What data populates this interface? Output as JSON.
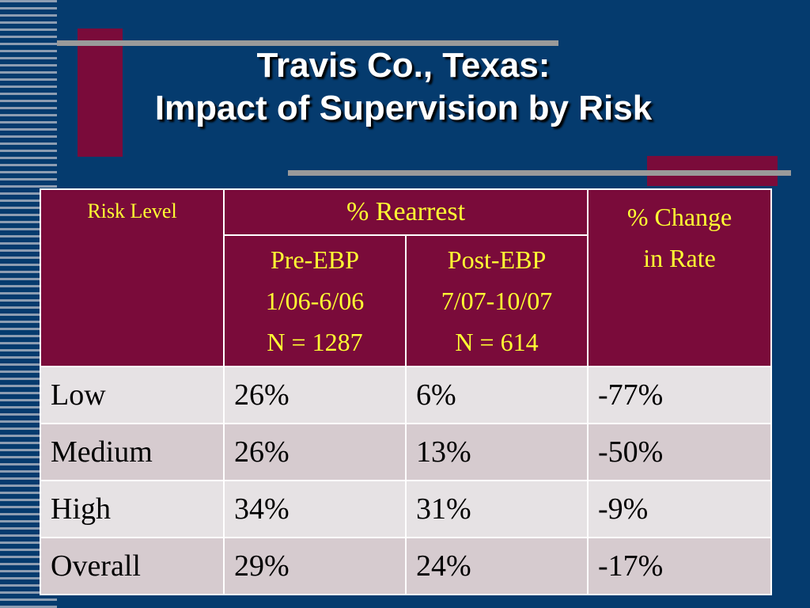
{
  "slide": {
    "title_line1": "Travis Co., Texas:",
    "title_line2": "Impact of Supervision by Risk"
  },
  "table": {
    "header": {
      "risk_level": "Risk Level",
      "rearrest": "% Rearrest",
      "change": [
        "% Change",
        "in Rate"
      ],
      "pre_ebp": [
        "Pre-EBP",
        "1/06-6/06",
        "N = 1287"
      ],
      "post_ebp": [
        "Post-EBP",
        "7/07-10/07",
        "N = 614"
      ]
    },
    "rows": [
      [
        "Low",
        "26%",
        "6%",
        "-77%"
      ],
      [
        "Medium",
        "26%",
        "13%",
        "-50%"
      ],
      [
        "High",
        "34%",
        "31%",
        "-9%"
      ],
      [
        "Overall",
        "29%",
        "24%",
        "-17%"
      ]
    ]
  },
  "colors": {
    "background": "#053b6e",
    "header_fill": "#7a0b3a",
    "header_text": "#ffff33",
    "row_light": "#e6e2e4",
    "row_dark": "#d6cbcf"
  }
}
